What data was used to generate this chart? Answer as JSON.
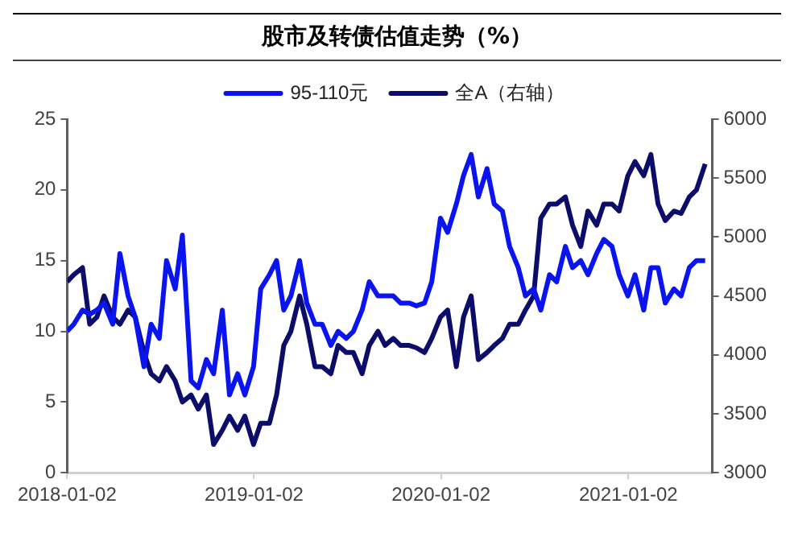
{
  "chart_data": {
    "type": "line",
    "title": "股市及转债估值走势（%）",
    "x": [
      "2018-01-02",
      "2018-01-15",
      "2018-02-01",
      "2018-02-15",
      "2018-03-01",
      "2018-03-15",
      "2018-04-01",
      "2018-04-15",
      "2018-05-01",
      "2018-05-15",
      "2018-06-01",
      "2018-06-15",
      "2018-07-01",
      "2018-07-15",
      "2018-08-01",
      "2018-08-15",
      "2018-09-01",
      "2018-09-15",
      "2018-10-01",
      "2018-10-15",
      "2018-11-01",
      "2018-11-15",
      "2018-12-01",
      "2018-12-15",
      "2019-01-01",
      "2019-01-15",
      "2019-02-01",
      "2019-02-15",
      "2019-03-01",
      "2019-03-15",
      "2019-04-01",
      "2019-04-15",
      "2019-05-01",
      "2019-05-15",
      "2019-06-01",
      "2019-06-15",
      "2019-07-01",
      "2019-07-15",
      "2019-08-01",
      "2019-08-15",
      "2019-09-01",
      "2019-09-15",
      "2019-10-01",
      "2019-10-15",
      "2019-11-01",
      "2019-11-15",
      "2019-12-01",
      "2019-12-15",
      "2020-01-01",
      "2020-01-15",
      "2020-02-01",
      "2020-02-15",
      "2020-03-01",
      "2020-03-15",
      "2020-04-01",
      "2020-04-15",
      "2020-05-01",
      "2020-05-15",
      "2020-06-01",
      "2020-06-15",
      "2020-07-01",
      "2020-07-15",
      "2020-08-01",
      "2020-08-15",
      "2020-09-01",
      "2020-09-15",
      "2020-10-01",
      "2020-10-15",
      "2020-11-01",
      "2020-11-15",
      "2020-12-01",
      "2020-12-15",
      "2021-01-01",
      "2021-01-15",
      "2021-02-01",
      "2021-02-15",
      "2021-03-01",
      "2021-03-15",
      "2021-04-01",
      "2021-04-15",
      "2021-05-01",
      "2021-05-15",
      "2021-06-01"
    ],
    "series": [
      {
        "name": "95-110元",
        "color": "#0a14f0",
        "values": [
          10,
          10.5,
          11.5,
          11.2,
          11.5,
          12,
          10.5,
          15.5,
          12.5,
          11,
          7.5,
          10.5,
          9.5,
          15,
          13,
          16.8,
          6.5,
          6,
          8,
          7,
          11.5,
          5.5,
          7,
          5.5,
          7.5,
          13,
          14,
          15,
          11.5,
          12.5,
          15,
          12,
          10.5,
          10.5,
          9,
          10,
          9.5,
          10,
          11.5,
          13.5,
          12.5,
          12.5,
          12.5,
          12,
          12,
          11.8,
          12,
          13.5,
          18,
          17,
          19,
          21,
          22.5,
          19.5,
          21.5,
          19,
          18.5,
          16,
          14.5,
          12.5,
          13,
          11.5,
          14,
          13.5,
          16,
          14.5,
          15,
          14,
          15.5,
          16.5,
          16,
          14,
          12.5,
          14,
          11.5,
          14.5,
          14.5,
          12,
          13,
          12.5,
          14.5,
          15,
          15
        ]
      },
      {
        "name": "全A（右轴）",
        "color": "#0c0c6b",
        "axis": "y2",
        "values": [
          4620,
          4680,
          4740,
          4260,
          4320,
          4500,
          4320,
          4260,
          4380,
          4320,
          4020,
          3840,
          3780,
          3900,
          3780,
          3600,
          3660,
          3540,
          3660,
          3240,
          3360,
          3480,
          3360,
          3480,
          3240,
          3420,
          3420,
          3660,
          4080,
          4200,
          4500,
          4260,
          3900,
          3900,
          3840,
          4080,
          4020,
          4020,
          3840,
          4080,
          4200,
          4080,
          4140,
          4080,
          4080,
          4060,
          4020,
          4140,
          4320,
          4380,
          3900,
          4320,
          4500,
          3960,
          4020,
          4080,
          4140,
          4260,
          4260,
          4380,
          4500,
          5160,
          5280,
          5280,
          5340,
          5100,
          4920,
          5220,
          5100,
          5280,
          5280,
          5220,
          5520,
          5640,
          5520,
          5700,
          5280,
          5140,
          5220,
          5200,
          5340,
          5400,
          5620
        ]
      }
    ],
    "xlim": [
      "2018-01-02",
      "2021-06-15"
    ],
    "xticks": [
      "2018-01-02",
      "2019-01-02",
      "2020-01-02",
      "2021-01-02"
    ],
    "ylim": [
      0,
      25
    ],
    "yticks": [
      0,
      5,
      10,
      15,
      20,
      25
    ],
    "y2lim": [
      3000,
      6000
    ],
    "y2ticks": [
      3000,
      3500,
      4000,
      4500,
      5000,
      5500,
      6000
    ],
    "legend": "top",
    "marker": "none",
    "line_style": "solid"
  }
}
